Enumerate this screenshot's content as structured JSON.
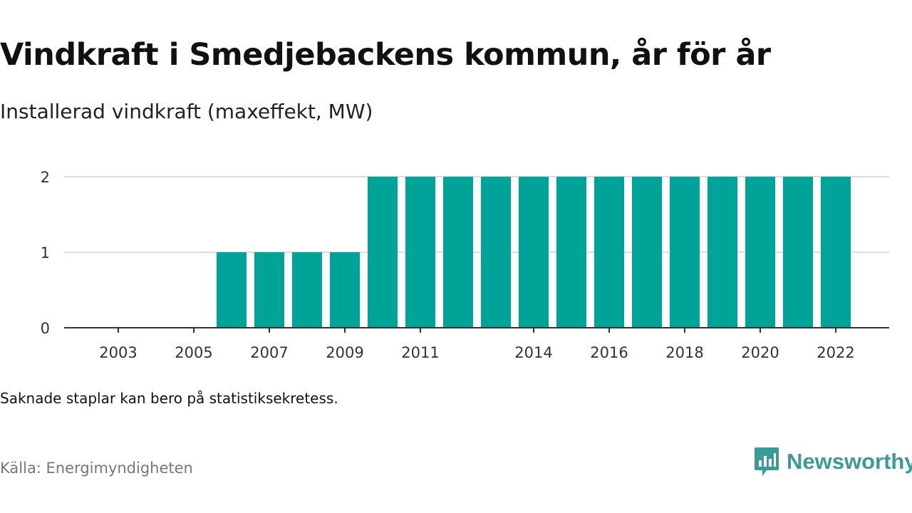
{
  "header": {
    "title": "Vindkraft i Smedjebackens kommun, år för år",
    "subtitle": "Installerad vindkraft (maxeffekt, MW)"
  },
  "footer": {
    "note": "Saknade staplar kan bero på statistiksekretess.",
    "source": "Källa: Energimyndigheten",
    "brand": "Newsworthy",
    "brand_icon": "newsworthy-logo-icon"
  },
  "colors": {
    "bar": "#00a398",
    "grid": "#dddddd",
    "axis": "#333333",
    "brand": "#3d9a98"
  },
  "chart_data": {
    "type": "bar",
    "x": [
      2003,
      2004,
      2005,
      2006,
      2007,
      2008,
      2009,
      2010,
      2011,
      2012,
      2013,
      2014,
      2015,
      2016,
      2017,
      2018,
      2019,
      2020,
      2021,
      2022
    ],
    "values": [
      0,
      0,
      0,
      1,
      1,
      1,
      1,
      2,
      2,
      2,
      2,
      2,
      2,
      2,
      2,
      2,
      2,
      2,
      2,
      2
    ],
    "x_tick_labels": [
      "2003",
      "2005",
      "2007",
      "2009",
      "2011",
      "2014",
      "2016",
      "2018",
      "2020",
      "2022"
    ],
    "y_ticks": [
      0,
      1,
      2
    ],
    "ylim": [
      0,
      2
    ],
    "grid": true,
    "legend": "none"
  }
}
